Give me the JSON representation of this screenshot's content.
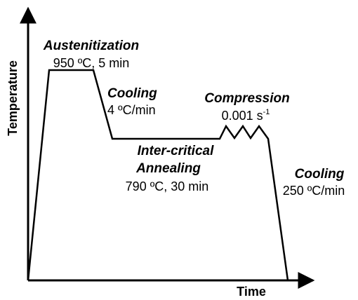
{
  "axes": {
    "y_label": "Temperature",
    "x_label": "Time"
  },
  "stages": [
    {
      "title": "Austenitization",
      "detail": "950 ºC, 5 min"
    },
    {
      "title": "Cooling",
      "detail": "4 ºC/min"
    },
    {
      "title": "Compression",
      "detail": "0.001 s",
      "detail_superscript": "-1"
    },
    {
      "title_line1": "Inter-critical",
      "title_line2": "Annealing",
      "detail": "790 ºC, 30 min"
    },
    {
      "title": "Cooling",
      "detail": "250 ºC/min"
    }
  ]
}
